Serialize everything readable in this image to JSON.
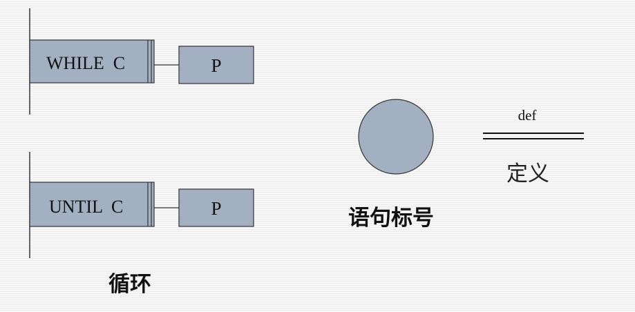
{
  "loops": {
    "while_label": "WHILE  C",
    "until_label": "UNTIL  C",
    "body_label": "P",
    "caption": "循环"
  },
  "statement_label": {
    "caption": "语句标号"
  },
  "definition": {
    "label": "def",
    "caption": "定义"
  },
  "colors": {
    "box_fill": "#a3b0c1",
    "stroke": "#333333"
  }
}
